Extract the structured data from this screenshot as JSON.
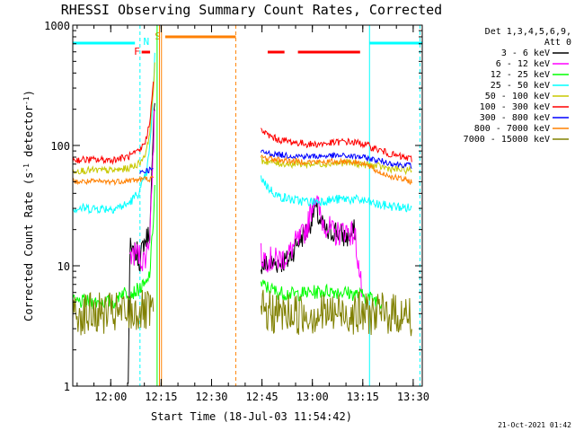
{
  "chart_data": {
    "type": "line",
    "title": "RHESSI Observing Summary Count Rates, Corrected",
    "xlabel": "Start Time (18-Jul-03 11:54:42)",
    "ylabel_main": "Corrected Count Rate (s",
    "ylabel_sup1": "-1",
    "ylabel_mid": " detector",
    "ylabel_sup2": "-1",
    "ylabel_end": ")",
    "y_scale": "log",
    "ylim": [
      1,
      1000
    ],
    "xlim_minutes": [
      -6,
      98
    ],
    "x_ticks": [
      {
        "label": "12:00",
        "t": 5.3
      },
      {
        "label": "12:15",
        "t": 20.3
      },
      {
        "label": "12:30",
        "t": 35.3
      },
      {
        "label": "12:45",
        "t": 50.3
      },
      {
        "label": "13:00",
        "t": 65.3
      },
      {
        "label": "13:15",
        "t": 80.3
      },
      {
        "label": "13:30",
        "t": 95.3
      }
    ],
    "y_ticks": [
      {
        "label": "1",
        "v": 1
      },
      {
        "label": "10",
        "v": 10
      },
      {
        "label": "100",
        "v": 100
      },
      {
        "label": "1000",
        "v": 1000
      }
    ],
    "legend_header": [
      "Det 1,3,4,5,6,9,",
      "Att 0"
    ],
    "legend_position": "top-right",
    "stamp": "21-Oct-2021 01:42",
    "series": [
      {
        "name": "3 - 6 keV",
        "color": "#000000",
        "pre": [
          [
            10.5,
            1.0
          ],
          [
            11.0,
            14
          ],
          [
            12,
            12
          ],
          [
            13,
            13
          ],
          [
            14,
            11
          ],
          [
            15,
            15
          ],
          [
            16,
            17
          ],
          [
            17,
            20
          ],
          [
            18,
            120
          ],
          [
            18.6,
            400
          ]
        ],
        "post": [
          [
            50,
            10
          ],
          [
            54,
            10.5
          ],
          [
            58,
            11
          ],
          [
            61,
            16
          ],
          [
            64,
            20
          ],
          [
            66,
            30
          ],
          [
            68,
            22
          ],
          [
            70,
            18
          ],
          [
            72,
            20
          ],
          [
            75,
            17
          ],
          [
            77,
            18
          ],
          [
            78,
            20
          ]
        ],
        "noise": 0.1
      },
      {
        "name": "6 - 12 keV",
        "color": "#ff00ff",
        "pre": [
          [
            11,
            12
          ],
          [
            13,
            13
          ],
          [
            15,
            11
          ],
          [
            16,
            13
          ],
          [
            17,
            20
          ],
          [
            18,
            100
          ],
          [
            18.6,
            300
          ]
        ],
        "post": [
          [
            50,
            12
          ],
          [
            54,
            11
          ],
          [
            58,
            12
          ],
          [
            60,
            15
          ],
          [
            62,
            17
          ],
          [
            64,
            22
          ],
          [
            66,
            40
          ],
          [
            68,
            24
          ],
          [
            70,
            21
          ],
          [
            72,
            18
          ],
          [
            75,
            20
          ],
          [
            78,
            18
          ],
          [
            80,
            6
          ]
        ],
        "noise": 0.11
      },
      {
        "name": "12 - 25 keV",
        "color": "#00ff00",
        "pre": [
          [
            -6,
            5
          ],
          [
            7,
            5
          ],
          [
            8,
            6
          ],
          [
            10,
            6
          ],
          [
            12,
            6
          ],
          [
            14,
            6.5
          ],
          [
            16,
            7
          ],
          [
            17,
            9
          ],
          [
            18,
            25
          ],
          [
            18.6,
            60
          ]
        ],
        "post": [
          [
            50,
            7
          ],
          [
            55,
            6
          ],
          [
            60,
            5.8
          ],
          [
            65,
            6
          ],
          [
            70,
            6.2
          ],
          [
            75,
            6
          ],
          [
            80,
            5.7
          ],
          [
            86,
            5
          ]
        ],
        "noise": 0.06
      },
      {
        "name": "25 - 50 keV",
        "color": "#00ffff",
        "pre": [
          [
            -6,
            30
          ],
          [
            6,
            30
          ],
          [
            8,
            31
          ],
          [
            10,
            32
          ],
          [
            12,
            36
          ],
          [
            14,
            42
          ],
          [
            16,
            60
          ],
          [
            17,
            100
          ],
          [
            18,
            300
          ],
          [
            18.6,
            700
          ]
        ],
        "post": [
          [
            50,
            55
          ],
          [
            52,
            45
          ],
          [
            55,
            38
          ],
          [
            60,
            35
          ],
          [
            65,
            34
          ],
          [
            70,
            35
          ],
          [
            75,
            36
          ],
          [
            80,
            35
          ],
          [
            85,
            32
          ],
          [
            95,
            30
          ]
        ],
        "noise": 0.04
      },
      {
        "name": "50 - 100 keV",
        "color": "#c8c800",
        "pre": [
          [
            -6,
            62
          ],
          [
            6,
            62
          ],
          [
            8,
            63
          ],
          [
            10,
            64
          ],
          [
            12,
            67
          ],
          [
            14,
            72
          ],
          [
            16,
            90
          ],
          [
            17,
            140
          ],
          [
            18,
            300
          ],
          [
            18.6,
            550
          ]
        ],
        "post": [
          [
            50,
            75
          ],
          [
            55,
            71
          ],
          [
            60,
            70
          ],
          [
            65,
            70
          ],
          [
            70,
            71
          ],
          [
            75,
            72
          ],
          [
            80,
            70
          ],
          [
            85,
            67
          ],
          [
            90,
            63
          ],
          [
            95,
            62
          ]
        ],
        "noise": 0.03
      },
      {
        "name": "100 - 300 keV",
        "color": "#ff0000",
        "pre": [
          [
            -6,
            76
          ],
          [
            6,
            76
          ],
          [
            8,
            78
          ],
          [
            10,
            80
          ],
          [
            12,
            84
          ],
          [
            14,
            90
          ],
          [
            16,
            115
          ],
          [
            17,
            170
          ],
          [
            18,
            330
          ]
        ],
        "post": [
          [
            50,
            135
          ],
          [
            52,
            122
          ],
          [
            55,
            112
          ],
          [
            60,
            106
          ],
          [
            65,
            102
          ],
          [
            70,
            104
          ],
          [
            75,
            108
          ],
          [
            80,
            104
          ],
          [
            85,
            92
          ],
          [
            90,
            82
          ],
          [
            95,
            77
          ]
        ],
        "noise": 0.03
      },
      {
        "name": "300 - 800 keV",
        "color": "#0000ff",
        "pre": [
          [
            14,
            60
          ],
          [
            16,
            62
          ],
          [
            17,
            63
          ],
          [
            18,
            63
          ]
        ],
        "post": [
          [
            50,
            88
          ],
          [
            55,
            84
          ],
          [
            60,
            82
          ],
          [
            65,
            81
          ],
          [
            70,
            82
          ],
          [
            75,
            82
          ],
          [
            80,
            80
          ],
          [
            85,
            75
          ],
          [
            90,
            70
          ],
          [
            95,
            68
          ]
        ],
        "noise": 0.025
      },
      {
        "name": "800 - 7000 keV",
        "color": "#ff8000",
        "pre": [
          [
            -6,
            50
          ],
          [
            6,
            50
          ],
          [
            10,
            51
          ],
          [
            14,
            52
          ],
          [
            16,
            53
          ],
          [
            18,
            53
          ]
        ],
        "post": [
          [
            50,
            80
          ],
          [
            55,
            76
          ],
          [
            60,
            74
          ],
          [
            65,
            73
          ],
          [
            70,
            73
          ],
          [
            75,
            74
          ],
          [
            80,
            72
          ],
          [
            85,
            60
          ],
          [
            90,
            54
          ],
          [
            95,
            50
          ]
        ],
        "noise": 0.025
      },
      {
        "name": "7000 - 15000 keV",
        "color": "#808000",
        "pre": [
          [
            -6,
            4
          ],
          [
            5,
            4
          ],
          [
            10,
            4
          ],
          [
            14,
            4.2
          ],
          [
            18,
            4
          ]
        ],
        "post": [
          [
            50,
            4.2
          ],
          [
            55,
            4
          ],
          [
            60,
            4
          ],
          [
            65,
            4
          ],
          [
            70,
            4
          ],
          [
            75,
            4.1
          ],
          [
            80,
            4
          ],
          [
            85,
            4
          ],
          [
            90,
            4
          ],
          [
            95,
            3.8
          ]
        ],
        "noise": 0.18
      }
    ],
    "annotations": [
      {
        "label": "N",
        "type": "night",
        "color": "#00ffff",
        "t": 14.0
      },
      {
        "label": "S",
        "type": "saa",
        "color": "#ff8000",
        "t": 18.8
      },
      {
        "label": "F",
        "type": "flare",
        "color": "#ff0000",
        "t": 13.5
      }
    ]
  }
}
